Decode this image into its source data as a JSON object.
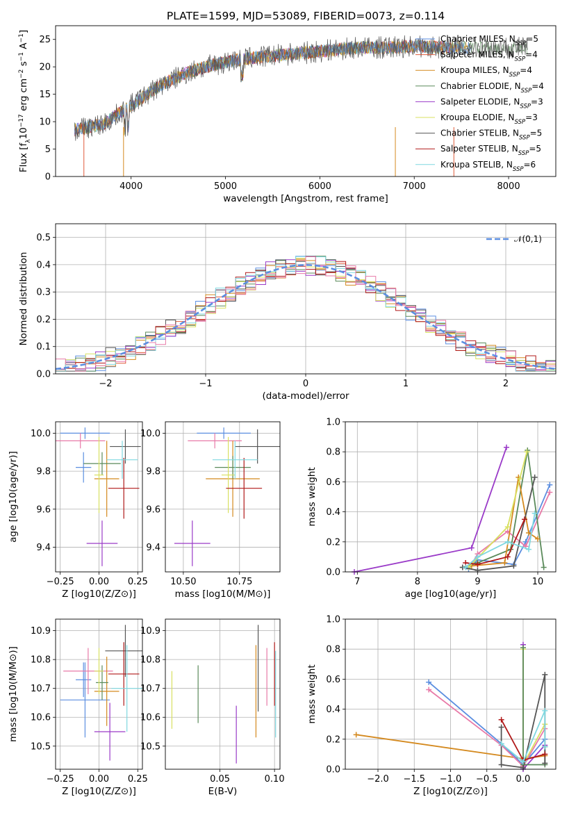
{
  "chart_data": [
    {
      "id": "spectrum",
      "type": "line",
      "title": "PLATE=1599, MJD=53089, FIBERID=0073, z=0.114",
      "xlabel": "wavelength [Angstrom, rest frame]",
      "ylabel": "Flux [f_λ 10^-17 erg cm^-2 s^-1 A^-1]",
      "xlim": [
        3200,
        8500
      ],
      "ylim": [
        0,
        27.5
      ],
      "xticks": [
        4000,
        5000,
        6000,
        7000,
        8000
      ],
      "yticks": [
        0,
        5,
        10,
        15,
        20,
        25
      ],
      "legend_position": "top-right",
      "legend": [
        {
          "label": "Chabrier MILES, N_SSP=5",
          "color": "#5b8ee0"
        },
        {
          "label": "Salpeter MILES, N_SSP=4",
          "color": "#e05a3a"
        },
        {
          "label": "Kroupa MILES, N_SSP=4",
          "color": "#d4891e"
        },
        {
          "label": "Chabrier ELODIE, N_SSP=4",
          "color": "#5a8a5a"
        },
        {
          "label": "Salpeter ELODIE, N_SSP=3",
          "color": "#9a3ac8"
        },
        {
          "label": "Kroupa ELODIE, N_SSP=3",
          "color": "#d8e060"
        },
        {
          "label": "Chabrier STELIB, N_SSP=5",
          "color": "#555555"
        },
        {
          "label": "Salpeter STELIB, N_SSP=5",
          "color": "#b01818"
        },
        {
          "label": "Kroupa STELIB, N_SSP=6",
          "color": "#7fd8e0"
        }
      ],
      "continuum": {
        "x": [
          3400,
          3700,
          4000,
          4300,
          4600,
          4900,
          5200,
          5500,
          5800,
          6100,
          6400,
          6700,
          7000,
          7300,
          7600,
          7900,
          8200
        ],
        "y": [
          8.5,
          9.5,
          13,
          16.5,
          19,
          20.5,
          21.5,
          22,
          22.5,
          23,
          23.5,
          23.5,
          23.8,
          23.5,
          23.5,
          23.5,
          23.5
        ]
      }
    },
    {
      "id": "residuals",
      "type": "area",
      "xlabel": "(data-model)/error",
      "ylabel": "Normed distribution",
      "xlim": [
        -2.5,
        2.5
      ],
      "ylim": [
        0,
        0.55
      ],
      "xticks": [
        -2,
        -1,
        0,
        1,
        2
      ],
      "yticks": [
        0.0,
        0.1,
        0.2,
        0.3,
        0.4,
        0.5
      ],
      "reference_label": "𝒩(0,1)",
      "legend_position": "top-right",
      "bin_centers": [
        -2.45,
        -2.35,
        -2.25,
        -2.15,
        -2.05,
        -1.95,
        -1.85,
        -1.75,
        -1.65,
        -1.55,
        -1.45,
        -1.35,
        -1.25,
        -1.15,
        -1.05,
        -0.95,
        -0.85,
        -0.75,
        -0.65,
        -0.55,
        -0.45,
        -0.35,
        -0.25,
        -0.15,
        -0.05,
        0.05,
        0.15,
        0.25,
        0.35,
        0.45,
        0.55,
        0.65,
        0.75,
        0.85,
        0.95,
        1.05,
        1.15,
        1.25,
        1.35,
        1.45,
        1.55,
        1.65,
        1.75,
        1.85,
        1.95,
        2.05,
        2.15,
        2.25,
        2.35,
        2.45
      ]
    },
    {
      "id": "age-vs-Z",
      "type": "scatter",
      "xlabel": "Z [log10(Z/Z⊙)]",
      "ylabel": "age [log10(age/yr)]",
      "xlim": [
        -0.28,
        0.28
      ],
      "ylim": [
        9.27,
        10.06
      ],
      "xticks": [
        -0.25,
        0.0,
        0.25
      ],
      "yticks": [
        9.4,
        9.6,
        9.8,
        10.0
      ],
      "points": [
        {
          "x": -0.09,
          "y": 10.0,
          "xerr": 0.16,
          "yerr": 0.03,
          "c": "#5b8ee0"
        },
        {
          "x": -0.1,
          "y": 9.82,
          "xerr": 0.05,
          "yerr": 0.08,
          "c": "#5b8ee0"
        },
        {
          "x": -0.12,
          "y": 9.96,
          "xerr": 0.16,
          "yerr": 0.04,
          "c": "#e87aa8"
        },
        {
          "x": 0.05,
          "y": 9.76,
          "xerr": 0.08,
          "yerr": 0.2,
          "c": "#d4891e"
        },
        {
          "x": 0.02,
          "y": 9.84,
          "xerr": 0.12,
          "yerr": 0.06,
          "c": "#5a8a5a"
        },
        {
          "x": 0.02,
          "y": 9.42,
          "xerr": 0.1,
          "yerr": 0.12,
          "c": "#9a3ac8"
        },
        {
          "x": 0.0,
          "y": 9.78,
          "xerr": 0.03,
          "yerr": 0.2,
          "c": "#d8e060"
        },
        {
          "x": 0.17,
          "y": 9.93,
          "xerr": 0.1,
          "yerr": 0.09,
          "c": "#555555"
        },
        {
          "x": 0.16,
          "y": 9.71,
          "xerr": 0.1,
          "yerr": 0.16,
          "c": "#b01818"
        },
        {
          "x": 0.15,
          "y": 9.86,
          "xerr": 0.1,
          "yerr": 0.1,
          "c": "#7fd8e0"
        }
      ]
    },
    {
      "id": "age-vs-mass",
      "type": "scatter",
      "xlabel": "mass [log10(M/M⊙)]",
      "ylabel": "",
      "xlim": [
        10.42,
        10.93
      ],
      "ylim": [
        9.27,
        10.06
      ],
      "xticks": [
        10.5,
        10.75
      ],
      "yticks": [
        9.4,
        9.6,
        9.8,
        10.0
      ],
      "points": [
        {
          "x": 10.68,
          "y": 10.0,
          "xerr": 0.12,
          "yerr": 0.03,
          "c": "#5b8ee0"
        },
        {
          "x": 10.64,
          "y": 9.96,
          "xerr": 0.12,
          "yerr": 0.04,
          "c": "#e87aa8"
        },
        {
          "x": 10.72,
          "y": 9.76,
          "xerr": 0.12,
          "yerr": 0.2,
          "c": "#d4891e"
        },
        {
          "x": 10.72,
          "y": 9.82,
          "xerr": 0.08,
          "yerr": 0.06,
          "c": "#5a8a5a"
        },
        {
          "x": 10.54,
          "y": 9.42,
          "xerr": 0.08,
          "yerr": 0.12,
          "c": "#9a3ac8"
        },
        {
          "x": 10.7,
          "y": 9.78,
          "xerr": 0.03,
          "yerr": 0.2,
          "c": "#d8e060"
        },
        {
          "x": 10.83,
          "y": 9.93,
          "xerr": 0.1,
          "yerr": 0.09,
          "c": "#555555"
        },
        {
          "x": 10.77,
          "y": 9.71,
          "xerr": 0.08,
          "yerr": 0.16,
          "c": "#b01818"
        },
        {
          "x": 10.73,
          "y": 9.86,
          "xerr": 0.1,
          "yerr": 0.1,
          "c": "#7fd8e0"
        }
      ]
    },
    {
      "id": "mass-weight-vs-age",
      "type": "line",
      "xlabel": "age [log10(age/yr)]",
      "ylabel": "mass weight",
      "xlim": [
        6.8,
        10.3
      ],
      "ylim": [
        0,
        1.0
      ],
      "xticks": [
        7,
        8,
        9,
        10
      ],
      "yticks": [
        0.0,
        0.2,
        0.4,
        0.6,
        0.8,
        1.0
      ],
      "series": [
        {
          "c": "#9a3ac8",
          "x": [
            6.95,
            8.9,
            9.48
          ],
          "y": [
            0.0,
            0.16,
            0.83
          ]
        },
        {
          "c": "#5b8ee0",
          "x": [
            8.85,
            9.0,
            9.6,
            9.8,
            10.2
          ],
          "y": [
            0.02,
            0.08,
            0.05,
            0.2,
            0.58
          ]
        },
        {
          "c": "#e87aa8",
          "x": [
            8.9,
            9.0,
            9.5,
            9.8,
            10.2
          ],
          "y": [
            0.05,
            0.12,
            0.27,
            0.17,
            0.53
          ]
        },
        {
          "c": "#5a8a5a",
          "x": [
            8.75,
            9.0,
            9.55,
            9.83,
            10.1
          ],
          "y": [
            0.03,
            0.06,
            0.15,
            0.81,
            0.03
          ]
        },
        {
          "c": "#d4891e",
          "x": [
            8.9,
            9.45,
            9.68,
            9.85,
            10.0
          ],
          "y": [
            0.04,
            0.06,
            0.63,
            0.26,
            0.22
          ]
        },
        {
          "c": "#d8e060",
          "x": [
            8.85,
            9.5,
            9.7,
            9.82
          ],
          "y": [
            0.03,
            0.3,
            0.62,
            0.8
          ]
        },
        {
          "c": "#555555",
          "x": [
            8.75,
            9.0,
            9.6,
            9.95
          ],
          "y": [
            0.03,
            0.01,
            0.04,
            0.63
          ]
        },
        {
          "c": "#b01818",
          "x": [
            8.8,
            9.0,
            9.5,
            9.78
          ],
          "y": [
            0.06,
            0.05,
            0.1,
            0.35
          ]
        },
        {
          "c": "#7fd8e0",
          "x": [
            8.8,
            9.0,
            9.5,
            9.85,
            9.95
          ],
          "y": [
            0.03,
            0.1,
            0.2,
            0.15,
            0.39
          ]
        }
      ]
    },
    {
      "id": "mass-vs-Z",
      "type": "scatter",
      "xlabel": "Z [log10(Z/Z⊙)]",
      "ylabel": "mass [log10(M/M⊙)]",
      "xlim": [
        -0.28,
        0.28
      ],
      "ylim": [
        10.42,
        10.94
      ],
      "xticks": [
        -0.25,
        0.0,
        0.25
      ],
      "yticks": [
        10.5,
        10.6,
        10.7,
        10.8,
        10.9
      ],
      "points": [
        {
          "x": -0.09,
          "y": 10.66,
          "xerr": 0.16,
          "yerr": 0.13,
          "c": "#5b8ee0"
        },
        {
          "x": -0.1,
          "y": 10.73,
          "xerr": 0.05,
          "yerr": 0.06,
          "c": "#5b8ee0"
        },
        {
          "x": -0.07,
          "y": 10.76,
          "xerr": 0.16,
          "yerr": 0.08,
          "c": "#e87aa8"
        },
        {
          "x": 0.05,
          "y": 10.69,
          "xerr": 0.08,
          "yerr": 0.12,
          "c": "#d4891e"
        },
        {
          "x": 0.02,
          "y": 10.72,
          "xerr": 0.04,
          "yerr": 0.06,
          "c": "#5a8a5a"
        },
        {
          "x": 0.07,
          "y": 10.55,
          "xerr": 0.1,
          "yerr": 0.1,
          "c": "#9a3ac8"
        },
        {
          "x": 0.0,
          "y": 10.76,
          "xerr": 0.03,
          "yerr": 0.08,
          "c": "#d8e060"
        },
        {
          "x": 0.17,
          "y": 10.83,
          "xerr": 0.13,
          "yerr": 0.09,
          "c": "#555555"
        },
        {
          "x": 0.16,
          "y": 10.75,
          "xerr": 0.1,
          "yerr": 0.11,
          "c": "#b01818"
        },
        {
          "x": 0.18,
          "y": 10.7,
          "xerr": 0.1,
          "yerr": 0.15,
          "c": "#7fd8e0"
        }
      ]
    },
    {
      "id": "mass-vs-EBV",
      "type": "scatter",
      "xlabel": "E(B-V)",
      "ylabel": "",
      "xlim": [
        0.0,
        0.105
      ],
      "ylim": [
        10.42,
        10.94
      ],
      "xticks": [
        0.05,
        0.1
      ],
      "yticks": [
        10.5,
        10.6,
        10.7,
        10.8,
        10.9
      ],
      "points": [
        {
          "x": 0.006,
          "y": 10.66,
          "yerr": 0.1,
          "c": "#d8e060"
        },
        {
          "x": 0.03,
          "y": 10.68,
          "yerr": 0.1,
          "c": "#5a8a5a"
        },
        {
          "x": 0.065,
          "y": 10.54,
          "yerr": 0.1,
          "c": "#9a3ac8"
        },
        {
          "x": 0.083,
          "y": 10.69,
          "yerr": 0.16,
          "c": "#d4891e"
        },
        {
          "x": 0.085,
          "y": 10.77,
          "yerr": 0.15,
          "c": "#555555"
        },
        {
          "x": 0.093,
          "y": 10.74,
          "yerr": 0.1,
          "c": "#e87aa8"
        },
        {
          "x": 0.1,
          "y": 10.75,
          "yerr": 0.11,
          "c": "#b01818"
        },
        {
          "x": 0.101,
          "y": 10.68,
          "yerr": 0.15,
          "c": "#7fd8e0"
        }
      ]
    },
    {
      "id": "mass-weight-vs-Z",
      "type": "line",
      "xlabel": "Z [log10(Z/Z⊙)]",
      "ylabel": "mass weight",
      "xlim": [
        -2.45,
        0.45
      ],
      "ylim": [
        0,
        1.0
      ],
      "xticks": [
        -2.0,
        -1.5,
        -1.0,
        -0.5,
        0.0
      ],
      "yticks": [
        0.0,
        0.2,
        0.4,
        0.6,
        0.8,
        1.0
      ],
      "series": [
        {
          "c": "#d4891e",
          "x": [
            -2.3,
            0.0,
            0.3
          ],
          "y": [
            0.23,
            0.07,
            0.09
          ]
        },
        {
          "c": "#5b8ee0",
          "x": [
            -1.3,
            -0.3,
            0.0,
            0.3
          ],
          "y": [
            0.58,
            0.17,
            0.03,
            0.2
          ]
        },
        {
          "c": "#e87aa8",
          "x": [
            -1.3,
            -0.3,
            0.0,
            0.3
          ],
          "y": [
            0.53,
            0.16,
            0.02,
            0.27
          ]
        },
        {
          "c": "#9a3ac8",
          "x": [
            0.0,
            0.0,
            0.3
          ],
          "y": [
            0.83,
            0.0,
            0.16
          ]
        },
        {
          "c": "#d8e060",
          "x": [
            0.0,
            0.0,
            0.3
          ],
          "y": [
            0.8,
            0.03,
            0.3
          ]
        },
        {
          "c": "#5a8a5a",
          "x": [
            0.0,
            0.0,
            0.3,
            0.3
          ],
          "y": [
            0.81,
            0.03,
            0.03,
            0.15
          ]
        },
        {
          "c": "#555555",
          "x": [
            -0.3,
            -0.3,
            0.0,
            0.3,
            0.3
          ],
          "y": [
            0.28,
            0.03,
            0.01,
            0.63,
            0.04
          ]
        },
        {
          "c": "#b01818",
          "x": [
            -0.3,
            0.0,
            0.3
          ],
          "y": [
            0.33,
            0.06,
            0.1
          ]
        },
        {
          "c": "#7fd8e0",
          "x": [
            -0.3,
            0.0,
            0.3,
            0.3
          ],
          "y": [
            0.17,
            0.05,
            0.39,
            0.15
          ]
        }
      ]
    }
  ]
}
